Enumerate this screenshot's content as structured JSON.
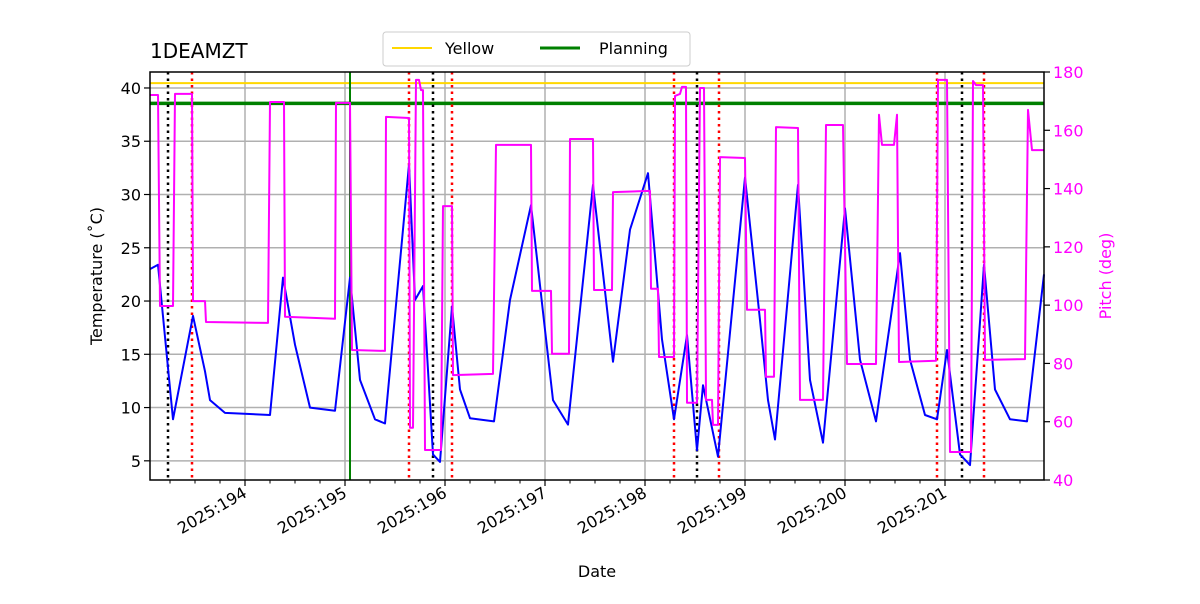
{
  "chart_data": {
    "type": "line",
    "title": "1DEAMZT",
    "xlabel": "Date",
    "ylabel": "Temperature ($^\\circ$C)",
    "ylabel_display": "Temperature (˚C)",
    "y2label": "Pitch (deg)",
    "xlim": [
      193.05,
      201.99
    ],
    "ylim": [
      3.2,
      41.5
    ],
    "y2lim": [
      40,
      180
    ],
    "x_ticks": [
      194,
      195,
      196,
      197,
      198,
      199,
      200,
      201
    ],
    "x_tick_labels": [
      "2025:194",
      "2025:195",
      "2025:196",
      "2025:197",
      "2025:198",
      "2025:199",
      "2025:200",
      "2025:201"
    ],
    "y_ticks": [
      5,
      10,
      15,
      20,
      25,
      30,
      35,
      40
    ],
    "y2_ticks": [
      40,
      60,
      80,
      100,
      120,
      140,
      160,
      180
    ],
    "grid": true,
    "legend": {
      "placement": "top-center",
      "entries": [
        "Yellow",
        "Planning"
      ]
    },
    "colors": {
      "temp": "#0000ff",
      "pitch": "#ff00ff",
      "yellow": "#ffd700",
      "planning": "#008000",
      "black_marker": "#000000",
      "red_marker": "#ff0000"
    },
    "hlines": [
      {
        "name": "Yellow",
        "value": 40.45
      },
      {
        "name": "Planning",
        "value": 38.55
      }
    ],
    "planning_vline": 195.05,
    "black_dotted_vlines": [
      193.23,
      195.88,
      198.52,
      201.17
    ],
    "red_dotted_vlines": [
      193.47,
      195.64,
      196.07,
      198.29,
      198.74,
      200.92,
      201.39
    ],
    "series": [
      {
        "name": "1DEAMZT",
        "axis": "left",
        "x": [
          193.05,
          193.13,
          193.28,
          193.48,
          193.6,
          193.65,
          193.8,
          194.25,
          194.38,
          194.5,
          194.65,
          194.9,
          195.05,
          195.15,
          195.3,
          195.4,
          195.64,
          195.7,
          195.78,
          195.88,
          195.95,
          196.07,
          196.15,
          196.25,
          196.49,
          196.65,
          196.86,
          197.0,
          197.08,
          197.23,
          197.48,
          197.68,
          197.85,
          198.03,
          198.17,
          198.29,
          198.42,
          198.52,
          198.58,
          198.73,
          199.0,
          199.15,
          199.23,
          199.3,
          199.53,
          199.65,
          199.78,
          200.0,
          200.15,
          200.31,
          200.55,
          200.65,
          200.8,
          200.92,
          201.02,
          201.15,
          201.25,
          201.39,
          201.5,
          201.65,
          201.82,
          201.99
        ],
        "y": [
          23.0,
          23.4,
          8.9,
          18.6,
          13.4,
          10.7,
          9.5,
          9.3,
          22.2,
          15.9,
          10.0,
          9.7,
          22.2,
          12.6,
          8.9,
          8.5,
          32.8,
          20.1,
          21.4,
          5.6,
          4.9,
          19.5,
          11.7,
          9.0,
          8.7,
          20.1,
          29.0,
          17.3,
          10.7,
          8.4,
          30.9,
          14.3,
          26.7,
          32.0,
          16.4,
          8.9,
          16.8,
          6.0,
          12.1,
          5.4,
          31.6,
          18.2,
          10.7,
          7.0,
          30.9,
          12.6,
          6.7,
          28.7,
          14.5,
          8.7,
          24.5,
          14.5,
          9.3,
          8.9,
          15.4,
          5.6,
          4.6,
          23.4,
          11.7,
          8.9,
          8.7,
          22.5
        ]
      },
      {
        "name": "Pitch",
        "axis": "right",
        "x": [
          193.05,
          193.13,
          193.15,
          193.28,
          193.3,
          193.47,
          193.48,
          193.6,
          193.61,
          194.23,
          194.25,
          194.39,
          194.4,
          194.9,
          194.91,
          195.05,
          195.07,
          195.4,
          195.41,
          195.64,
          195.65,
          195.68,
          195.71,
          195.74,
          195.76,
          195.78,
          195.8,
          195.96,
          195.98,
          196.07,
          196.08,
          196.48,
          196.51,
          196.86,
          196.87,
          197.06,
          197.07,
          197.24,
          197.25,
          197.48,
          197.49,
          197.67,
          197.68,
          198.05,
          198.06,
          198.13,
          198.14,
          198.29,
          198.3,
          198.35,
          198.37,
          198.41,
          198.42,
          198.52,
          198.55,
          198.59,
          198.61,
          198.67,
          198.68,
          198.73,
          198.75,
          199.0,
          199.02,
          199.2,
          199.21,
          199.29,
          199.31,
          199.53,
          199.55,
          199.78,
          199.81,
          199.98,
          200.02,
          200.31,
          200.34,
          200.37,
          200.49,
          200.52,
          200.54,
          200.91,
          200.93,
          201.02,
          201.05,
          201.26,
          201.28,
          201.31,
          201.38,
          201.4,
          201.8,
          201.83,
          201.87,
          201.99
        ],
        "y": [
          172.1,
          172.1,
          99.7,
          99.7,
          172.5,
          172.5,
          101.4,
          101.4,
          94.2,
          93.9,
          169.7,
          169.7,
          96.0,
          95.3,
          169.4,
          169.4,
          84.6,
          84.3,
          164.6,
          164.2,
          57.9,
          57.9,
          177.3,
          177.3,
          173.8,
          173.8,
          50.3,
          50.3,
          134.0,
          134.0,
          76.0,
          76.4,
          155.0,
          155.0,
          104.9,
          104.9,
          83.3,
          83.3,
          157.0,
          157.0,
          105.2,
          105.2,
          138.8,
          139.2,
          105.6,
          105.6,
          82.2,
          82.2,
          171.8,
          172.5,
          174.9,
          174.9,
          66.5,
          66.5,
          174.5,
          174.5,
          67.5,
          67.5,
          58.9,
          58.9,
          150.8,
          150.5,
          98.4,
          98.4,
          75.4,
          75.4,
          161.1,
          160.8,
          67.5,
          67.5,
          161.8,
          161.8,
          79.8,
          79.8,
          165.3,
          155.0,
          155.0,
          165.3,
          80.5,
          80.9,
          177.3,
          177.3,
          49.6,
          49.6,
          176.9,
          175.5,
          175.5,
          81.2,
          81.5,
          167.0,
          153.2,
          153.2
        ]
      }
    ]
  }
}
